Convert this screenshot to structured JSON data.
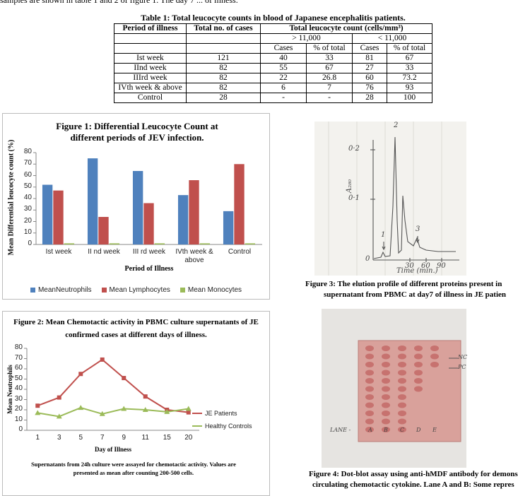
{
  "intro": "samples are shown in table 1 and 2 of figure 1. The day 7 ... of illness.",
  "table1": {
    "title": "Table 1: Total leucocyte counts in blood of Japanese encephalitis patients.",
    "header": [
      "Period of illness",
      "Total no. of cases",
      "Total leucocyte count (cells/mm³)"
    ],
    "groups": [
      "> 11,000",
      "< 11,000"
    ],
    "subheader": [
      "Cases",
      "% of total",
      "Cases",
      "% of total"
    ],
    "rows": [
      [
        "Ist week",
        121,
        40,
        33,
        81,
        67
      ],
      [
        "IInd week",
        82,
        55,
        67,
        27,
        33
      ],
      [
        "IIIrd week",
        82,
        22,
        26.8,
        60,
        73.2
      ],
      [
        "IVth week & above",
        82,
        6,
        7,
        76,
        93
      ],
      [
        "Control",
        28,
        "-",
        "-",
        28,
        100
      ]
    ]
  },
  "chart_data": [
    {
      "type": "bar",
      "title": "Figure 1: Differential Leucocyte Count at different periods of JEV infection.",
      "x_label": "Period of Illness",
      "y_label": "Mean Differential leucocyte count (%)",
      "categories": [
        "Ist week",
        "II nd week",
        "III rd week",
        "IVth week & above",
        "Control"
      ],
      "series": [
        {
          "name": "MeanNeutrophils",
          "color": "#4f81bd",
          "values": [
            52,
            75,
            64,
            43,
            29
          ]
        },
        {
          "name": "Mean Lymphocytes",
          "color": "#c0504d",
          "values": [
            47,
            24,
            36,
            56,
            70
          ]
        },
        {
          "name": "Mean Monocytes",
          "color": "#9bbb59",
          "values": [
            1,
            1,
            1,
            1,
            1
          ]
        }
      ],
      "ylim": [
        0,
        80
      ],
      "yticks": [
        0,
        10,
        20,
        30,
        40,
        50,
        60,
        70,
        80
      ],
      "grid": false,
      "legend": "bottom"
    },
    {
      "type": "line",
      "title": "Figure 2: Mean Chemotactic activity in PBMC culture supernatants of JE confirmed cases at different days of illness.",
      "x_label": "Day of Illness",
      "y_label": "Mean Neutrophils",
      "note": "Supernatants from 24h culture were assayed for chemotactic activity. Values are presented as mean after counting 200-500 cells.",
      "categories": [
        1,
        3,
        5,
        7,
        9,
        11,
        15,
        20
      ],
      "series": [
        {
          "name": "JE Patients",
          "color": "#c0504d",
          "marker": "square",
          "values": [
            24,
            32,
            55,
            69,
            51,
            33,
            20,
            17.5
          ]
        },
        {
          "name": "Healthy Controls",
          "color": "#9bbb59",
          "marker": "triangle",
          "values": [
            17,
            13.5,
            22,
            16,
            21,
            20,
            18,
            21
          ]
        }
      ],
      "ylim": [
        0,
        80
      ],
      "yticks": [
        0,
        10,
        20,
        30,
        40,
        50,
        60,
        70,
        80
      ],
      "grid": false,
      "legend": "right"
    }
  ],
  "figure3": {
    "labels": [
      "0·2",
      "0·1",
      "0",
      "1",
      "2",
      "3",
      "30",
      "60",
      "90",
      "Time (min.)",
      "A₂₈₀"
    ],
    "caption_lines": [
      "Figure 3: The elution profile of different proteins present in",
      "supernatant from PBMC at day7 of illness in JE patien"
    ]
  },
  "figure4": {
    "labels": [
      "NC",
      "PC",
      "LANE -",
      "A",
      "B",
      "C",
      "D",
      "E"
    ],
    "caption_lines": [
      "Figure 4: Dot-blot assay using anti-hMDF antibody for demons",
      "circulating chemotactic cytokine. Lane A and B: Some repres"
    ]
  }
}
